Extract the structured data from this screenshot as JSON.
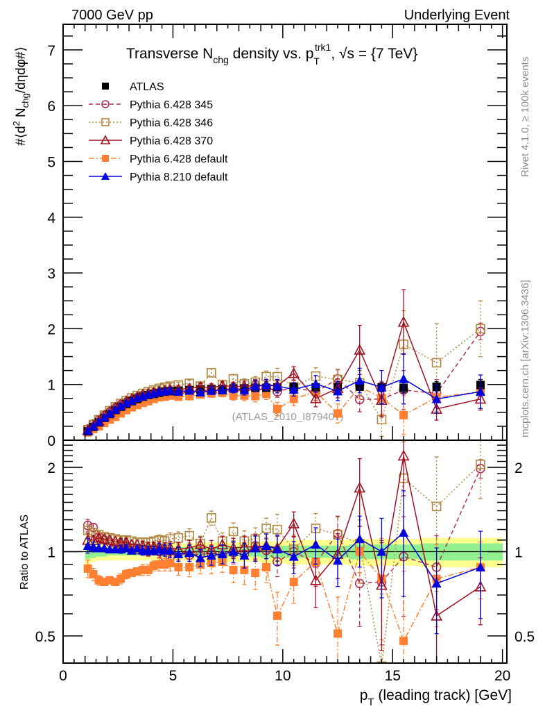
{
  "header": {
    "left": "7000 GeV pp",
    "right": "Underlying Event"
  },
  "side_labels": {
    "rivet": "Rivet 4.1.0, ≥ 100k events",
    "mcplots": "mcplots.cern.ch [arXiv:1306.3436]"
  },
  "chart_data": [
    {
      "type": "scatter",
      "panel": "main",
      "title": "Transverse N_chg density vs. p_T^trk1, √s = {7 TeV}",
      "title_parts": {
        "pre": "Transverse N",
        "sub1": "chg",
        "mid": " density vs. p",
        "sub2": "T",
        "sup2": "trk1",
        "post": ", √s = {7 TeV}"
      },
      "ylabel": "#⟨d² N_chg/dηdφ#⟩",
      "ylabel_parts": {
        "pre": "#⟨d",
        "sup": "2",
        "mid": " N",
        "sub": "chg",
        "post": "/dηdφ#⟩"
      },
      "xlim": [
        0,
        20.2
      ],
      "ylim": [
        0,
        7.46
      ],
      "yticks": [
        0,
        1,
        2,
        3,
        4,
        5,
        6,
        7
      ],
      "analysis_tag": "(ATLAS_2010_I879407)",
      "legend_position": "top-left",
      "x": [
        1.125,
        1.375,
        1.625,
        1.875,
        2.125,
        2.375,
        2.625,
        2.875,
        3.125,
        3.375,
        3.625,
        3.875,
        4.125,
        4.375,
        4.625,
        4.875,
        5.25,
        5.75,
        6.25,
        6.75,
        7.25,
        7.75,
        8.25,
        8.75,
        9.25,
        9.75,
        10.5,
        11.5,
        12.5,
        13.5,
        14.5,
        15.5,
        17.0,
        19.0
      ],
      "series": [
        {
          "name": "ATLAS",
          "color": "#000000",
          "marker": "square-filled",
          "line": "none",
          "values": [
            0.16,
            0.24,
            0.32,
            0.4,
            0.47,
            0.54,
            0.6,
            0.65,
            0.7,
            0.74,
            0.78,
            0.81,
            0.83,
            0.85,
            0.87,
            0.88,
            0.89,
            0.9,
            0.91,
            0.92,
            0.92,
            0.93,
            0.93,
            0.94,
            0.94,
            0.95,
            0.95,
            0.95,
            0.95,
            0.96,
            0.95,
            0.94,
            0.96,
            0.99
          ]
        },
        {
          "name": "Pythia 6.428 345",
          "color": "#b03050",
          "marker": "circle-open",
          "line": "dashed",
          "values": [
            0.2,
            0.29,
            0.36,
            0.44,
            0.51,
            0.58,
            0.64,
            0.68,
            0.72,
            0.76,
            0.79,
            0.81,
            0.84,
            0.85,
            0.83,
            0.85,
            0.88,
            0.87,
            0.89,
            0.9,
            0.89,
            0.92,
            0.91,
            0.99,
            0.95,
            0.87,
            0.95,
            0.86,
            1.1,
            0.73,
            0.74,
            0.9,
            0.84,
            1.95
          ]
        },
        {
          "name": "Pythia 6.428 346",
          "color": "#b08840",
          "marker": "square-open",
          "line": "dotted",
          "values": [
            0.19,
            0.28,
            0.37,
            0.45,
            0.53,
            0.6,
            0.66,
            0.71,
            0.76,
            0.8,
            0.84,
            0.87,
            0.9,
            0.93,
            0.95,
            0.97,
            0.99,
            1.02,
            0.97,
            1.21,
            1.0,
            1.1,
            1.01,
            1.04,
            1.14,
            1.14,
            0.96,
            1.15,
            1.09,
            1.03,
            0.37,
            1.72,
            1.39,
            2.0
          ]
        },
        {
          "name": "Pythia 6.428 370",
          "color": "#a01020",
          "marker": "triangle-open",
          "line": "solid",
          "values": [
            0.18,
            0.26,
            0.35,
            0.44,
            0.51,
            0.58,
            0.64,
            0.7,
            0.74,
            0.78,
            0.82,
            0.84,
            0.86,
            0.88,
            0.89,
            0.91,
            0.91,
            0.93,
            0.96,
            0.94,
            0.98,
            0.96,
            0.97,
            0.98,
            0.99,
            0.98,
            1.2,
            0.75,
            0.93,
            1.62,
            0.72,
            2.12,
            0.56,
            0.74
          ]
        },
        {
          "name": "Pythia 6.428 default",
          "color": "#ff8030",
          "marker": "square-filled",
          "line": "dashdot",
          "values": [
            0.14,
            0.2,
            0.25,
            0.31,
            0.37,
            0.42,
            0.48,
            0.54,
            0.59,
            0.63,
            0.67,
            0.7,
            0.74,
            0.77,
            0.78,
            0.8,
            0.78,
            0.79,
            0.82,
            0.84,
            0.85,
            0.8,
            0.8,
            0.79,
            0.83,
            0.56,
            0.74,
            0.87,
            0.48,
            0.96,
            0.76,
            0.45,
            0.77,
            0.87
          ]
        },
        {
          "name": "Pythia 8.210 default",
          "color": "#0000dd",
          "marker": "triangle-filled",
          "line": "solid",
          "values": [
            0.17,
            0.25,
            0.33,
            0.41,
            0.48,
            0.55,
            0.61,
            0.67,
            0.71,
            0.76,
            0.79,
            0.82,
            0.84,
            0.87,
            0.88,
            0.89,
            0.87,
            0.89,
            0.86,
            0.89,
            0.9,
            0.93,
            0.9,
            0.97,
            0.99,
            0.97,
            0.91,
            1.01,
            0.88,
            1.07,
            0.95,
            1.1,
            0.74,
            0.87
          ]
        }
      ],
      "errors": {
        "ATLAS": [
          0.005,
          0.005,
          0.005,
          0.006,
          0.006,
          0.007,
          0.007,
          0.008,
          0.009,
          0.01,
          0.01,
          0.011,
          0.012,
          0.013,
          0.014,
          0.015,
          0.02,
          0.02,
          0.03,
          0.03,
          0.03,
          0.04,
          0.04,
          0.04,
          0.05,
          0.05,
          0.05,
          0.06,
          0.07,
          0.07,
          0.08,
          0.09,
          0.09,
          0.1
        ],
        "Pythia 6.428 345": [
          0.01,
          0.01,
          0.01,
          0.01,
          0.01,
          0.01,
          0.02,
          0.02,
          0.02,
          0.02,
          0.03,
          0.03,
          0.03,
          0.04,
          0.04,
          0.05,
          0.05,
          0.06,
          0.06,
          0.07,
          0.07,
          0.08,
          0.09,
          0.1,
          0.1,
          0.1,
          0.12,
          0.15,
          0.17,
          0.22,
          0.3,
          0.35,
          0.25,
          0.15
        ],
        "Pythia 6.428 346": [
          0.01,
          0.01,
          0.01,
          0.01,
          0.01,
          0.01,
          0.02,
          0.02,
          0.02,
          0.02,
          0.03,
          0.03,
          0.03,
          0.04,
          0.04,
          0.05,
          0.05,
          0.06,
          0.06,
          0.07,
          0.07,
          0.08,
          0.09,
          0.1,
          0.1,
          0.15,
          0.12,
          0.15,
          0.17,
          0.22,
          0.3,
          0.6,
          0.7,
          0.5
        ],
        "Pythia 6.428 370": [
          0.01,
          0.01,
          0.01,
          0.01,
          0.01,
          0.01,
          0.02,
          0.02,
          0.02,
          0.02,
          0.03,
          0.03,
          0.03,
          0.04,
          0.04,
          0.05,
          0.05,
          0.06,
          0.06,
          0.07,
          0.07,
          0.08,
          0.09,
          0.1,
          0.1,
          0.1,
          0.12,
          0.15,
          0.17,
          0.44,
          0.3,
          0.58,
          0.2,
          0.2
        ],
        "Pythia 6.428 default": [
          0.01,
          0.01,
          0.01,
          0.01,
          0.01,
          0.01,
          0.02,
          0.02,
          0.02,
          0.02,
          0.03,
          0.03,
          0.03,
          0.04,
          0.04,
          0.05,
          0.05,
          0.06,
          0.06,
          0.07,
          0.07,
          0.08,
          0.09,
          0.1,
          0.1,
          0.12,
          0.12,
          0.15,
          0.17,
          0.22,
          0.3,
          0.35,
          0.25,
          0.2
        ],
        "Pythia 8.210 default": [
          0.01,
          0.01,
          0.01,
          0.01,
          0.01,
          0.01,
          0.02,
          0.02,
          0.02,
          0.02,
          0.03,
          0.03,
          0.03,
          0.04,
          0.04,
          0.05,
          0.05,
          0.06,
          0.06,
          0.07,
          0.07,
          0.08,
          0.09,
          0.1,
          0.1,
          0.12,
          0.12,
          0.15,
          0.17,
          0.22,
          0.3,
          0.45,
          0.25,
          0.3
        ]
      }
    },
    {
      "type": "scatter",
      "panel": "ratio",
      "ylabel": "Ratio to ATLAS",
      "xlabel": "p_T (leading track) [GeV]",
      "xlabel_parts": {
        "pre": "p",
        "sub": "T",
        "post": " (leading track) [GeV]"
      },
      "xlim": [
        0,
        20.2
      ],
      "ylim": [
        0.4,
        2.5
      ],
      "yscale": "log",
      "yticks": [
        0.5,
        1,
        2
      ],
      "xticks": [
        0,
        5,
        10,
        15,
        20
      ],
      "reference_line": 1,
      "band_colors": {
        "inner": "#90f090",
        "outer": "#ffff90"
      },
      "band_inner_halfwidth": [
        0.06,
        0.05,
        0.04,
        0.04,
        0.03,
        0.03,
        0.03,
        0.03,
        0.03,
        0.03,
        0.03,
        0.03,
        0.03,
        0.03,
        0.03,
        0.03,
        0.04,
        0.04,
        0.04,
        0.04,
        0.04,
        0.04,
        0.04,
        0.04,
        0.05,
        0.05,
        0.05,
        0.05,
        0.05,
        0.06,
        0.06,
        0.06,
        0.07,
        0.07
      ],
      "band_outer_halfwidth": [
        0.1,
        0.08,
        0.07,
        0.07,
        0.07,
        0.07,
        0.07,
        0.07,
        0.07,
        0.07,
        0.07,
        0.07,
        0.07,
        0.07,
        0.07,
        0.07,
        0.07,
        0.07,
        0.08,
        0.08,
        0.08,
        0.08,
        0.08,
        0.08,
        0.09,
        0.09,
        0.1,
        0.1,
        0.1,
        0.11,
        0.11,
        0.11,
        0.12,
        0.12
      ],
      "series": [
        {
          "name": "Pythia 6.428 345",
          "values": [
            1.24,
            1.22,
            1.13,
            1.1,
            1.08,
            1.07,
            1.06,
            1.05,
            1.03,
            1.02,
            1.01,
            1.0,
            1.01,
            1.0,
            0.96,
            0.96,
            0.99,
            0.97,
            0.98,
            0.98,
            0.97,
            0.99,
            0.98,
            1.05,
            1.01,
            0.92,
            1.0,
            0.91,
            1.16,
            0.77,
            0.78,
            0.96,
            0.88,
            1.98
          ]
        },
        {
          "name": "Pythia 6.428 346",
          "values": [
            1.19,
            1.17,
            1.15,
            1.13,
            1.12,
            1.11,
            1.1,
            1.1,
            1.09,
            1.08,
            1.08,
            1.08,
            1.09,
            1.1,
            1.09,
            1.11,
            1.12,
            1.14,
            1.07,
            1.32,
            1.09,
            1.18,
            1.09,
            1.11,
            1.21,
            1.2,
            1.02,
            1.21,
            1.15,
            1.07,
            0.39,
            1.83,
            1.45,
            2.05
          ]
        },
        {
          "name": "Pythia 6.428 370",
          "values": [
            1.1,
            1.1,
            1.12,
            1.11,
            1.1,
            1.09,
            1.08,
            1.08,
            1.06,
            1.06,
            1.05,
            1.04,
            1.04,
            1.04,
            1.03,
            1.03,
            1.02,
            1.03,
            1.06,
            1.02,
            1.06,
            1.03,
            1.04,
            1.04,
            1.05,
            1.03,
            1.26,
            0.79,
            0.98,
            1.69,
            0.76,
            2.2,
            0.59,
            0.75
          ]
        },
        {
          "name": "Pythia 6.428 default",
          "values": [
            0.87,
            0.83,
            0.79,
            0.78,
            0.79,
            0.78,
            0.8,
            0.83,
            0.84,
            0.85,
            0.86,
            0.86,
            0.89,
            0.9,
            0.9,
            0.91,
            0.88,
            0.88,
            0.9,
            0.91,
            0.92,
            0.86,
            0.86,
            0.84,
            0.88,
            0.59,
            0.78,
            0.92,
            0.51,
            1.0,
            0.8,
            0.48,
            0.8,
            0.88
          ]
        },
        {
          "name": "Pythia 8.210 default",
          "values": [
            1.05,
            1.04,
            1.03,
            1.03,
            1.02,
            1.02,
            1.02,
            1.03,
            1.01,
            1.03,
            1.01,
            1.01,
            1.01,
            1.02,
            1.01,
            1.01,
            0.98,
            0.99,
            0.95,
            0.97,
            0.98,
            1.0,
            0.97,
            1.03,
            1.05,
            1.02,
            0.96,
            1.06,
            0.93,
            1.11,
            1.0,
            1.17,
            0.77,
            0.88
          ]
        }
      ]
    }
  ]
}
